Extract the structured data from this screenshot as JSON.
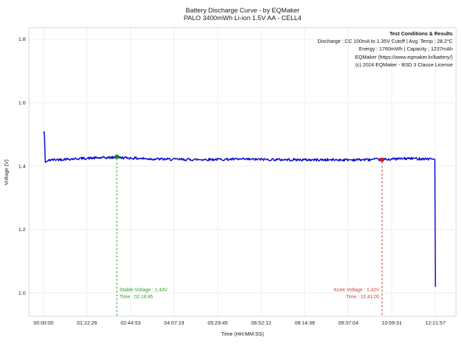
{
  "chart_data": {
    "type": "line",
    "title": "Battery Discharge Curve - by EQMaker",
    "subtitle": "PALO 3400mWh Li-ion 1.5V AA - CELL4",
    "xlabel": "Time (HH:MM:SS)",
    "ylabel": "Voltage (V)",
    "grid": true,
    "legend": "none",
    "x_ticks": [
      {
        "label": "00:00:00",
        "seconds": 0
      },
      {
        "label": "01:22:26",
        "seconds": 4946
      },
      {
        "label": "02:44:53",
        "seconds": 9893
      },
      {
        "label": "04:07:19",
        "seconds": 14839
      },
      {
        "label": "05:29:45",
        "seconds": 19785
      },
      {
        "label": "06:52:12",
        "seconds": 24732
      },
      {
        "label": "08:14:38",
        "seconds": 29678
      },
      {
        "label": "09:37:04",
        "seconds": 34624
      },
      {
        "label": "10:59:31",
        "seconds": 39571
      },
      {
        "label": "12:21:57",
        "seconds": 44517
      }
    ],
    "y_ticks": [
      {
        "label": "1.0",
        "value": 1.0
      },
      {
        "label": "1.2",
        "value": 1.2
      },
      {
        "label": "1.4",
        "value": 1.4
      },
      {
        "label": "1.6",
        "value": 1.6
      },
      {
        "label": "1.8",
        "value": 1.8
      }
    ],
    "xlim_seconds": [
      -1650,
      46880
    ],
    "ylim": [
      0.926,
      1.837
    ],
    "series": [
      {
        "name": "cell-voltage",
        "color": "#0f0fd0",
        "noise_v": 0.004,
        "noise_range_s": [
          400,
          44150
        ],
        "profile": [
          [
            0,
            1.507
          ],
          [
            90,
            1.507
          ],
          [
            200,
            1.412
          ],
          [
            700,
            1.419
          ],
          [
            2500,
            1.421
          ],
          [
            8325,
            1.427
          ],
          [
            12000,
            1.424
          ],
          [
            17000,
            1.421
          ],
          [
            25000,
            1.42
          ],
          [
            32000,
            1.421
          ],
          [
            38465,
            1.42
          ],
          [
            41500,
            1.423
          ],
          [
            44380,
            1.422
          ],
          [
            44460,
            1.421
          ],
          [
            44517,
            1.02
          ]
        ]
      }
    ],
    "annotations": [
      {
        "name": "stable-voltage",
        "seconds": 8325,
        "voltage": 1.43,
        "label_lines": [
          "Stable Voltage : 1.43V",
          "Time : 02:18:45"
        ],
        "text_side": "right",
        "line_color": "#2f9e2f",
        "marker_color": "#0f8c0f",
        "text_color": "#2f9e2f"
      },
      {
        "name": "knee-voltage",
        "seconds": 38465,
        "voltage": 1.42,
        "label_lines": [
          "Knee Voltage : 1.42V",
          "Time : 10:41:05"
        ],
        "text_side": "left",
        "line_color": "#cc3b3b",
        "marker_color": "#e60f0f",
        "text_color": "#cc4444"
      }
    ],
    "info_box": {
      "title": "Test Conditions & Results",
      "lines": [
        "Discharge : CC 100mA to 1.35V Cutoff | Avg. Temp : 28.2°C",
        "Energy : 1760mWh | Capacity : 1237mAh",
        "EQMaker (https://www.eqmaker.kr/battery/)",
        "(c) 2024 EQMaker - BSD 3 Clause License"
      ]
    },
    "colors": {
      "background": "#ffffff",
      "grid": "#ececec",
      "border": "#d4d4d4",
      "curve": "#0f0fd0",
      "tick_text": "#262626"
    }
  }
}
